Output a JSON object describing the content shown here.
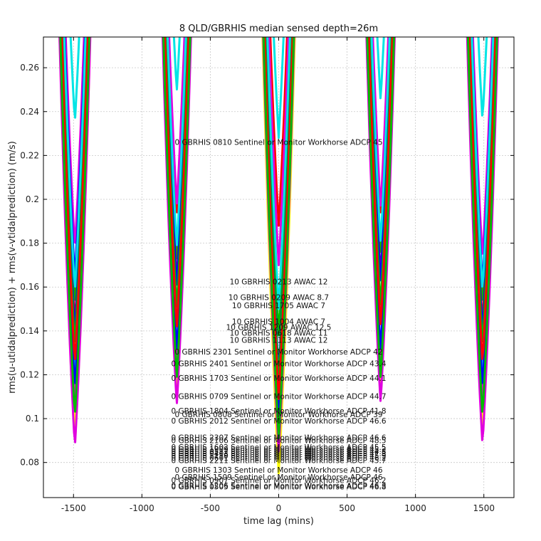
{
  "chart_data": {
    "type": "line",
    "title": "8 QLD/GBRHIS median sensed depth=26m",
    "xlabel": "time lag (mins)",
    "ylabel": "rms(u-utidalprediction) + rms(v-vtidalprediction) (m/s)",
    "xlim": [
      -1720,
      1720
    ],
    "ylim": [
      0.064,
      0.274
    ],
    "xticks": [
      -1500,
      -1000,
      -500,
      0,
      500,
      1000,
      1500
    ],
    "xtick_labels": [
      "-1500",
      "-1000",
      "-500",
      "0",
      "500",
      "1000",
      "1500"
    ],
    "yticks": [
      0.08,
      0.1,
      0.12,
      0.14,
      0.16,
      0.18,
      0.2,
      0.22,
      0.24,
      0.26
    ],
    "ytick_labels": [
      "0.08",
      "0.1",
      "0.12",
      "0.14",
      "0.16",
      "0.18",
      "0.2",
      "0.22",
      "0.24",
      "0.26"
    ],
    "grid": true,
    "dip_centers": [
      -1490,
      -745,
      0,
      745,
      1490
    ],
    "series": [
      {
        "name": "0 GBRHIS 0810 Sentinel or Monitor Workhorse ADCP 45",
        "color": "#00e5e5",
        "minima": [
          0.235,
          0.249,
          0.228,
          0.245,
          0.236
        ]
      },
      {
        "name": "0 GBRHIS 1303 Sentinel or Monitor Workhorse ADCP 46",
        "color": "#ff0000",
        "minima": [
          0.143,
          0.193,
          0.188,
          0.193,
          0.143
        ]
      },
      {
        "name": "0 GBRHIS 1509 Sentinel or Monitor Workhorse ADCP 46",
        "color": "#e000e0",
        "minima": [
          0.178,
          0.197,
          0.17,
          0.196,
          0.173
        ]
      },
      {
        "name": "10 GBRHIS 0213 AWAC 12",
        "color": "#ffff00",
        "minima": [
          0.088,
          0.125,
          0.075,
          0.125,
          0.092
        ]
      },
      {
        "name": "10 GBRHIS 0209 AWAC 8.7",
        "color": "#0000ff",
        "minima": [
          0.164,
          0.162,
          0.098,
          0.165,
          0.161
        ]
      },
      {
        "name": "10 GBRHIS 1705 AWAC 7",
        "color": "#00bb00",
        "minima": [
          0.152,
          0.172,
          0.138,
          0.175,
          0.152
        ]
      },
      {
        "name": "10 GBRHIS 1004 AWAC 7",
        "color": "#00e5e5",
        "minima": [
          0.12,
          0.142,
          0.1,
          0.142,
          0.12
        ]
      },
      {
        "name": "10 GBRHIS 1209 AWAC 12.5",
        "color": "#ff0000",
        "minima": [
          0.14,
          0.162,
          0.11,
          0.163,
          0.141
        ]
      },
      {
        "name": "10 GBRHIS 0618 AWAC 11",
        "color": "#e000e0",
        "minima": [
          0.108,
          0.125,
          0.093,
          0.126,
          0.108
        ]
      },
      {
        "name": "10 GBRHIS 1113 AWAC 12",
        "color": "#0000ff",
        "minima": [
          0.139,
          0.16,
          0.12,
          0.162,
          0.139
        ]
      },
      {
        "name": "0 GBRHIS 2301 Sentinel or Monitor Workhorse ADCP 42",
        "color": "#00bb00",
        "minima": [
          0.133,
          0.15,
          0.117,
          0.151,
          0.133
        ]
      },
      {
        "name": "0 GBRHIS 2401 Sentinel or Monitor Workhorse ADCP 43.4",
        "color": "#ffff00",
        "minima": [
          0.095,
          0.112,
          0.082,
          0.112,
          0.094
        ]
      },
      {
        "name": "0 GBRHIS 1703 Sentinel or Monitor Workhorse ADCP 44.1",
        "color": "#e000e0",
        "minima": [
          0.087,
          0.106,
          0.085,
          0.107,
          0.088
        ]
      },
      {
        "name": "0 GBRHIS 0709 Sentinel or Monitor Workhorse ADCP 44.7",
        "color": "#0000ff",
        "minima": [
          0.114,
          0.131,
          0.104,
          0.131,
          0.114
        ]
      },
      {
        "name": "0 GBRHIS 1804 Sentinel or Monitor Workhorse ADCP 41.8",
        "color": "#ff0000",
        "minima": [
          0.125,
          0.141,
          0.109,
          0.142,
          0.125
        ]
      },
      {
        "name": "0 GBRHIS 0808 Sentinel or Monitor Workhorse ADCP 39",
        "color": "#00e5e5",
        "minima": [
          0.158,
          0.178,
          0.15,
          0.18,
          0.158
        ]
      },
      {
        "name": "0 GBRHIS 2012 Sentinel or Monitor Workhorse ADCP 46.6",
        "color": "#00bb00",
        "minima": [
          0.101,
          0.118,
          0.091,
          0.118,
          0.101
        ]
      }
    ],
    "annotations": [
      {
        "text": "0 GBRHIS 0810 Sentinel or Monitor Workhorse ADCP 45",
        "x": 0,
        "y": 0.2262
      },
      {
        "text": "10 GBRHIS 0213 AWAC 12",
        "x": 0,
        "y": 0.1625
      },
      {
        "text": "10 GBRHIS 0209 AWAC 8.7",
        "x": 0,
        "y": 0.1553
      },
      {
        "text": "10 GBRHIS 1705 AWAC 7",
        "x": 0,
        "y": 0.1517
      },
      {
        "text": "10 GBRHIS 1004 AWAC 7",
        "x": 0,
        "y": 0.1444
      },
      {
        "text": "10 GBRHIS 1209 AWAC 12.5",
        "x": 0,
        "y": 0.1418
      },
      {
        "text": "10 GBRHIS 0618 AWAC 11",
        "x": 0,
        "y": 0.1392
      },
      {
        "text": "10 GBRHIS 1113 AWAC 12",
        "x": 0,
        "y": 0.1359
      },
      {
        "text": "0 GBRHIS 2301 Sentinel or Monitor Workhorse ADCP 42",
        "x": 0,
        "y": 0.1306
      },
      {
        "text": "0 GBRHIS 2401 Sentinel or Monitor Workhorse ADCP 43.4",
        "x": 0,
        "y": 0.1252
      },
      {
        "text": "0 GBRHIS 1703 Sentinel or Monitor Workhorse ADCP 44.1",
        "x": 0,
        "y": 0.1186
      },
      {
        "text": "0 GBRHIS 0709 Sentinel or Monitor Workhorse ADCP 44.7",
        "x": 0,
        "y": 0.1103
      },
      {
        "text": "0 GBRHIS 1804 Sentinel or Monitor Workhorse ADCP 41.8",
        "x": 0,
        "y": 0.1036
      },
      {
        "text": "0 GBRHIS 0808 Sentinel or Monitor Workhorse ADCP 39",
        "x": 0,
        "y": 0.102
      },
      {
        "text": "0 GBRHIS 2012 Sentinel or Monitor Workhorse ADCP 46.6",
        "x": 0,
        "y": 0.099
      },
      {
        "text": "0 GBRHIS 2307 Sentinel or Monitor Workhorse ADCP 46.6",
        "x": 0,
        "y": 0.0914
      },
      {
        "text": "0 GBRHIS 2106 Sentinel or Monitor Workhorse ADCP 48.5",
        "x": 0,
        "y": 0.0901
      },
      {
        "text": "0 GBRHIS 1602 Sentinel or Monitor Workhorse ADCP 45.5",
        "x": 0,
        "y": 0.0871
      },
      {
        "text": "0 GBRHIS 1909 Sentinel or Monitor Workhorse ADCP 45.2",
        "x": 0,
        "y": 0.0861
      },
      {
        "text": "0 GBRHIS 0512 Sentinel or Monitor Workhorse ADCP 44.8",
        "x": 0,
        "y": 0.0851
      },
      {
        "text": "0 GBRHIS 0403 Sentinel or Monitor Workhorse ADCP 47.3",
        "x": 0,
        "y": 0.0841
      },
      {
        "text": "0 GBRHIS 1110 Sentinel or Monitor Workhorse ADCP 45.9",
        "x": 0,
        "y": 0.0831
      },
      {
        "text": "0 GBRHIS 0601 Sentinel or Monitor Workhorse ADCP 46.2",
        "x": 0,
        "y": 0.0821
      },
      {
        "text": "0 GBRHIS 2211 Sentinel or Monitor Workhorse ADCP 45.7",
        "x": 0,
        "y": 0.0811
      },
      {
        "text": "0 GBRHIS 1303 Sentinel or Monitor Workhorse ADCP 46",
        "x": 0,
        "y": 0.0766
      },
      {
        "text": "0 GBRHIS 1509 Sentinel or Monitor Workhorse ADCP 46",
        "x": 0,
        "y": 0.0734
      },
      {
        "text": "0 GBRHIS 0907 Sentinel or Monitor Workhorse ADCP 46.2",
        "x": 0,
        "y": 0.072
      },
      {
        "text": "0 GBRHIS 1206 Sentinel or Monitor Workhorse ADCP 46.3",
        "x": 0,
        "y": 0.0695
      },
      {
        "text": "0 GBRHIS 0505 Sentinel or Monitor Workhorse ADCP 46.8",
        "x": 0,
        "y": 0.069
      }
    ]
  }
}
